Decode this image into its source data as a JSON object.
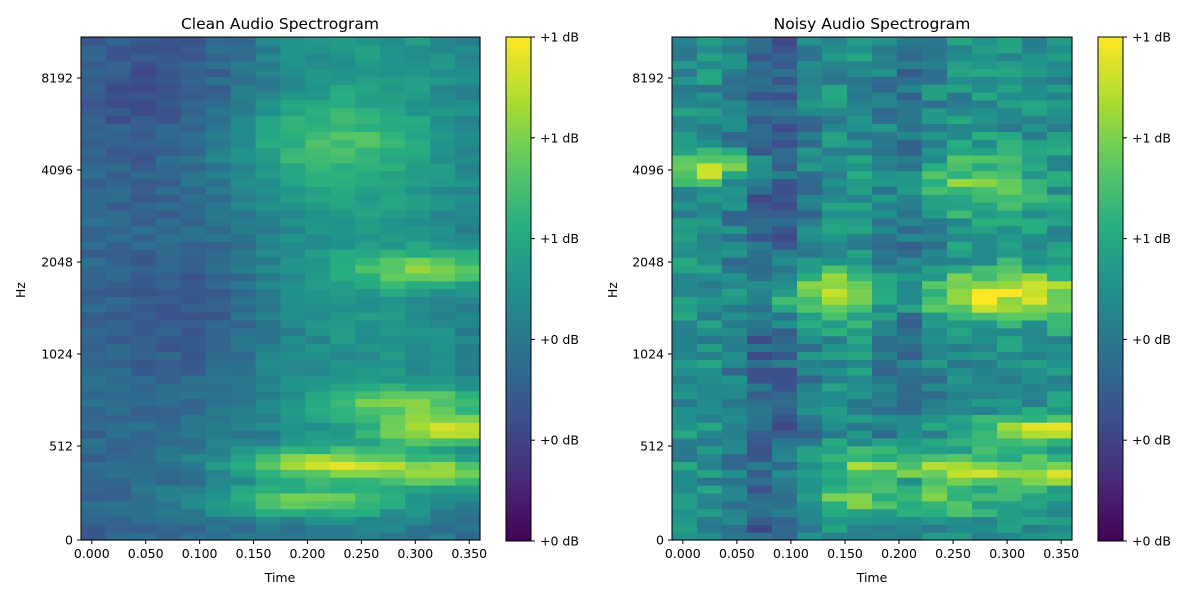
{
  "colormap": "viridis",
  "chart_data": [
    {
      "type": "heatmap",
      "title": "Clean Audio Spectrogram",
      "xlabel": "Time",
      "ylabel": "Hz",
      "xlim": [
        -0.01,
        0.36
      ],
      "x_ticks": [
        {
          "value": 0.0,
          "label": "0.000"
        },
        {
          "value": 0.05,
          "label": "0.050"
        },
        {
          "value": 0.1,
          "label": "0.100"
        },
        {
          "value": 0.15,
          "label": "0.150"
        },
        {
          "value": 0.2,
          "label": "0.200"
        },
        {
          "value": 0.25,
          "label": "0.250"
        },
        {
          "value": 0.3,
          "label": "0.300"
        },
        {
          "value": 0.35,
          "label": "0.350"
        }
      ],
      "y_scale": "log2-spaced (mel-like)",
      "y_ticks": [
        "0",
        "512",
        "1024",
        "2048",
        "4096",
        "8192"
      ],
      "colorbar_ticks": [
        "+0 dB",
        "+0 dB",
        "+0 dB",
        "+1 dB",
        "+1 dB",
        "+1 dB"
      ],
      "time_frames": 16,
      "freq_bins": 64,
      "energy_regions": [
        {
          "time": [
            0.15,
            0.3
          ],
          "hz": "256-320",
          "level": 0.85
        },
        {
          "time": [
            0.17,
            0.26
          ],
          "hz": "450-560",
          "level": 0.88
        },
        {
          "time": [
            0.29,
            0.36
          ],
          "hz": "620-700",
          "level": 0.95
        },
        {
          "time": [
            0.29,
            0.36
          ],
          "hz": "430-480",
          "level": 0.85
        },
        {
          "time": [
            0.29,
            0.36
          ],
          "hz": "1800-2100",
          "level": 0.7
        }
      ]
    },
    {
      "type": "heatmap",
      "title": "Noisy Audio Spectrogram",
      "xlabel": "Time",
      "ylabel": "Hz",
      "xlim": [
        -0.01,
        0.36
      ],
      "x_ticks": [
        {
          "value": 0.0,
          "label": "0.000"
        },
        {
          "value": 0.05,
          "label": "0.050"
        },
        {
          "value": 0.1,
          "label": "0.100"
        },
        {
          "value": 0.15,
          "label": "0.150"
        },
        {
          "value": 0.2,
          "label": "0.200"
        },
        {
          "value": 0.25,
          "label": "0.250"
        },
        {
          "value": 0.3,
          "label": "0.300"
        },
        {
          "value": 0.35,
          "label": "0.350"
        }
      ],
      "y_scale": "log2-spaced (mel-like)",
      "y_ticks": [
        "0",
        "512",
        "1024",
        "2048",
        "4096",
        "8192"
      ],
      "colorbar_ticks": [
        "+0 dB",
        "+0 dB",
        "+0 dB",
        "+1 dB",
        "+1 dB",
        "+1 dB"
      ],
      "time_frames": 16,
      "freq_bins": 64,
      "energy_regions": [
        {
          "time": [
            0.0,
            0.06
          ],
          "hz": "4096-4400",
          "level": 0.98
        },
        {
          "time": [
            0.11,
            0.17
          ],
          "hz": "1500-1800",
          "level": 0.95
        },
        {
          "time": [
            0.24,
            0.3
          ],
          "hz": "1600-1800",
          "level": 0.98
        },
        {
          "time": [
            0.17,
            0.26
          ],
          "hz": "450-560",
          "level": 0.9
        },
        {
          "time": [
            0.29,
            0.36
          ],
          "hz": "620-700",
          "level": 0.95
        }
      ]
    }
  ]
}
